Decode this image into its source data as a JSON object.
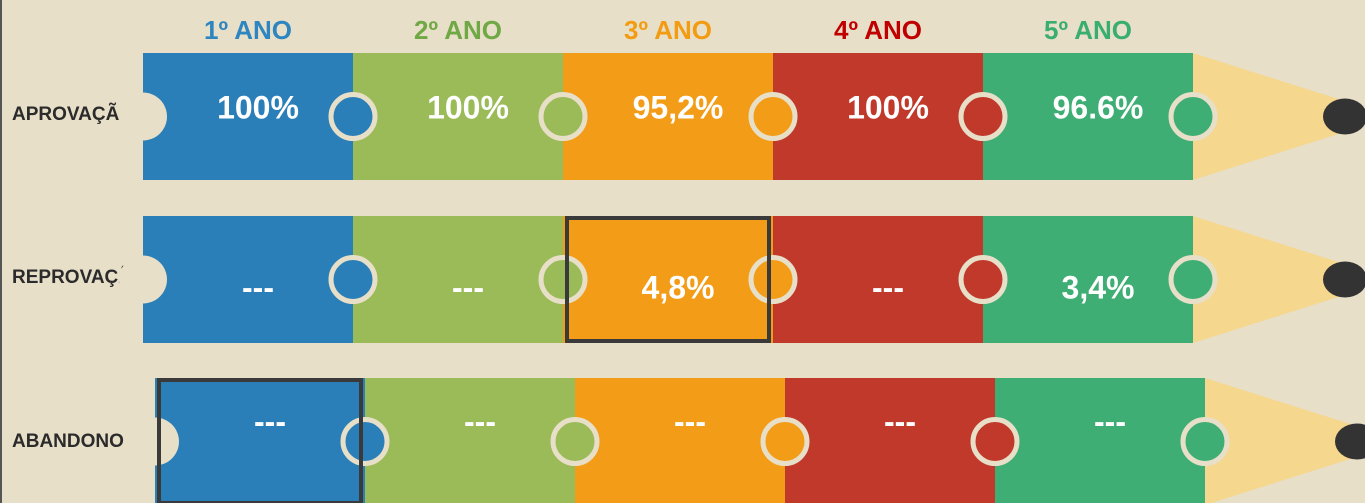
{
  "columns": [
    "1º ANO",
    "2º ANO",
    "3º ANO",
    "4º ANO",
    "5º ANO"
  ],
  "rows": [
    {
      "label": "APROVAÇÃO",
      "cells": [
        "100%",
        "100%",
        "95,2%",
        "100%",
        "96.6%"
      ]
    },
    {
      "label": "REPROVAÇÃO",
      "cells": [
        "---",
        "---",
        "4,8%",
        "---",
        "3,4%"
      ]
    },
    {
      "label": "ABANDONO",
      "cells": [
        "---",
        "---",
        "---",
        "---",
        "---"
      ]
    }
  ]
}
